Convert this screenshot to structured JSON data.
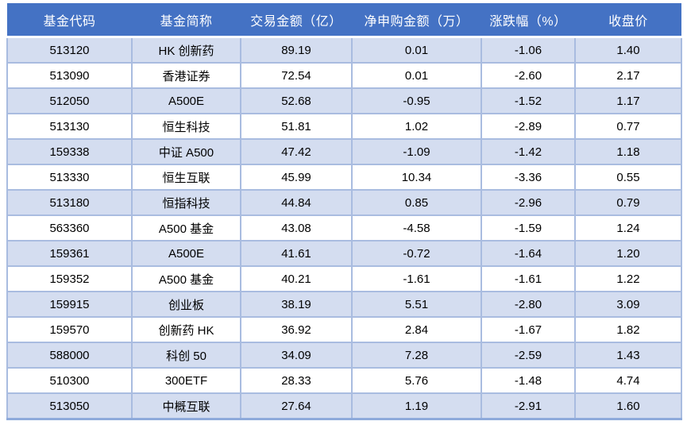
{
  "chart_data": {
    "type": "table",
    "title": "",
    "columns": [
      "基金代码",
      "基金简称",
      "交易金额（亿）",
      "净申购金额（万）",
      "涨跌幅（%）",
      "收盘价"
    ],
    "column_keys": [
      "fund-code",
      "fund-name",
      "trade-amount-100m",
      "net-subscription-10k",
      "change-pct",
      "close-price"
    ],
    "rows": [
      [
        "513120",
        "HK 创新药",
        "89.19",
        "0.01",
        "-1.06",
        "1.40"
      ],
      [
        "513090",
        "香港证券",
        "72.54",
        "0.01",
        "-2.60",
        "2.17"
      ],
      [
        "512050",
        "A500E",
        "52.68",
        "-0.95",
        "-1.52",
        "1.17"
      ],
      [
        "513130",
        "恒生科技",
        "51.81",
        "1.02",
        "-2.89",
        "0.77"
      ],
      [
        "159338",
        "中证 A500",
        "47.42",
        "-1.09",
        "-1.42",
        "1.18"
      ],
      [
        "513330",
        "恒生互联",
        "45.99",
        "10.34",
        "-3.36",
        "0.55"
      ],
      [
        "513180",
        "恒指科技",
        "44.84",
        "0.85",
        "-2.96",
        "0.79"
      ],
      [
        "563360",
        "A500 基金",
        "43.08",
        "-4.58",
        "-1.59",
        "1.24"
      ],
      [
        "159361",
        "A500E",
        "41.61",
        "-0.72",
        "-1.64",
        "1.20"
      ],
      [
        "159352",
        "A500 基金",
        "40.21",
        "-1.61",
        "-1.61",
        "1.22"
      ],
      [
        "159915",
        "创业板",
        "38.19",
        "5.51",
        "-2.80",
        "3.09"
      ],
      [
        "159570",
        "创新药 HK",
        "36.92",
        "2.84",
        "-1.67",
        "1.82"
      ],
      [
        "588000",
        "科创 50",
        "34.09",
        "7.28",
        "-2.59",
        "1.43"
      ],
      [
        "510300",
        "300ETF",
        "28.33",
        "5.76",
        "-1.48",
        "4.74"
      ],
      [
        "513050",
        "中概互联",
        "27.64",
        "1.19",
        "-2.91",
        "1.60"
      ]
    ],
    "layout": {
      "banding": "odd rows light blue, even rows white",
      "legend": "none",
      "grid": true
    }
  },
  "colors": {
    "header_bg": "#4472C4",
    "header_text": "#FFFFFF",
    "band_row_bg": "#D4DDF0",
    "plain_row_bg": "#FFFFFF",
    "grid_border": "#A9BCE0",
    "table_bottom_border": "#8EAADB",
    "body_text": "#000000"
  }
}
